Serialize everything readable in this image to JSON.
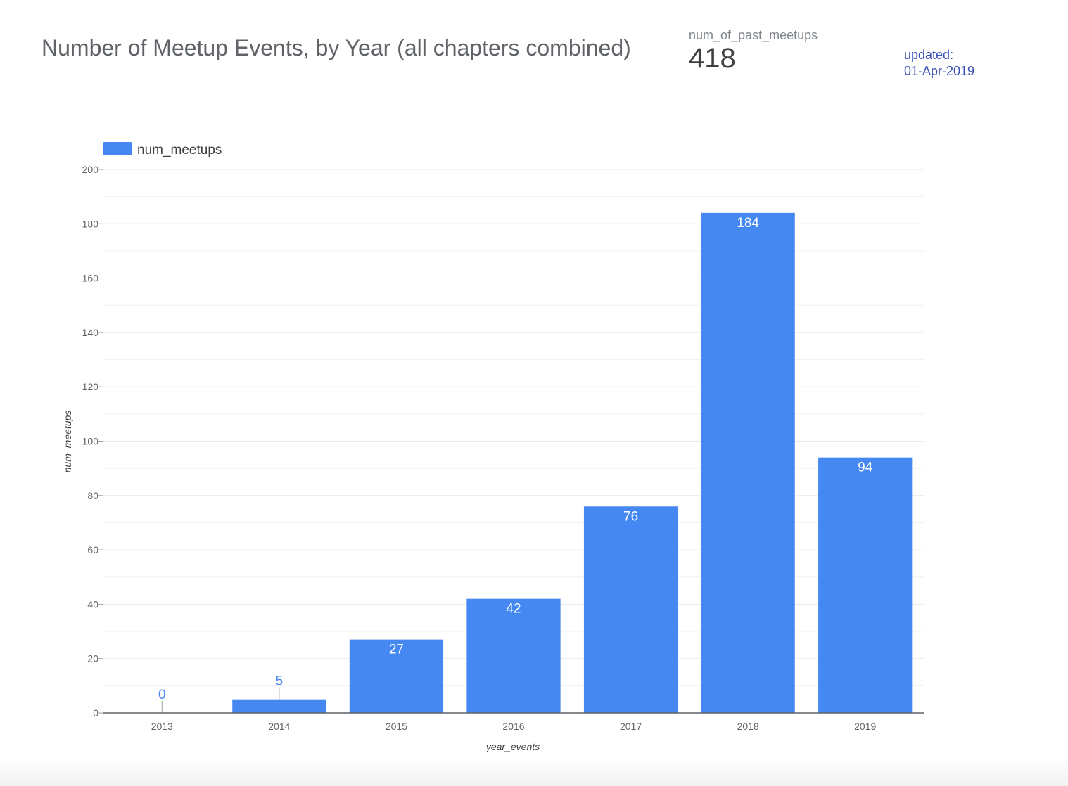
{
  "header": {
    "title": "Number of Meetup Events, by Year (all chapters combined)"
  },
  "scorecard": {
    "label": "num_of_past_meetups",
    "value": "418"
  },
  "updated": {
    "label": "updated:",
    "date": "01-Apr-2019"
  },
  "colors": {
    "bar": "#4688f1",
    "label_outside": "#4688f1",
    "label_inside": "#ffffff",
    "grid": "#e8e8e8",
    "axis": "#5f6368",
    "tick_text": "#5f6368"
  },
  "chart_data": {
    "type": "bar",
    "title": "Number of Meetup Events, by Year (all chapters combined)",
    "xlabel": "year_events",
    "ylabel": "num_meetups",
    "categories": [
      "2013",
      "2014",
      "2015",
      "2016",
      "2017",
      "2018",
      "2019"
    ],
    "series": [
      {
        "name": "num_meetups",
        "values": [
          0,
          5,
          27,
          42,
          76,
          184,
          94
        ]
      }
    ],
    "ylim": [
      0,
      200
    ],
    "yticks": [
      0,
      20,
      40,
      60,
      80,
      100,
      120,
      140,
      160,
      180,
      200
    ],
    "grid": true,
    "legend": "top-left",
    "data_labels": true
  }
}
